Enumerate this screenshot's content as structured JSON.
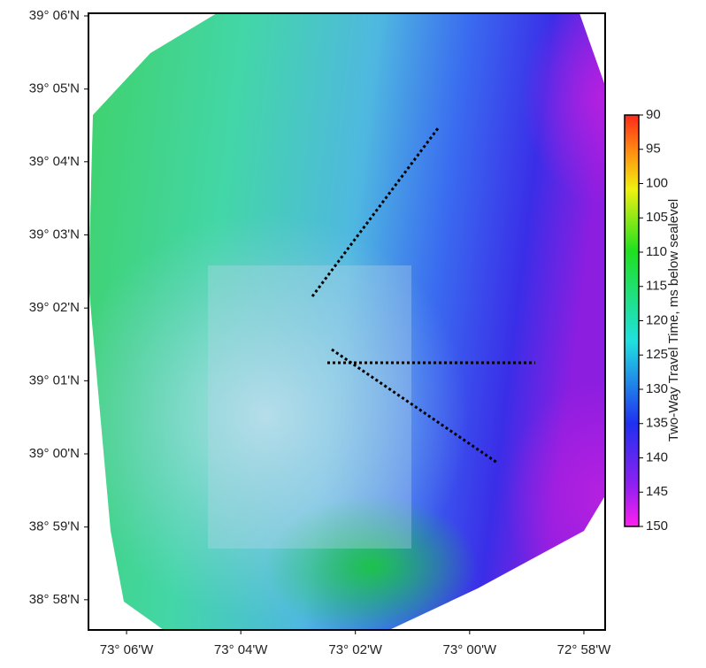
{
  "map": {
    "lat_lim": [
      38.9598,
      39.1006
    ],
    "lon_lim": [
      -73.1111,
      -72.9605
    ],
    "lat_ticks": [
      {
        "value": 39.1,
        "label": "39° 06'N"
      },
      {
        "value": 39.0833,
        "label": "39° 05'N"
      },
      {
        "value": 39.0667,
        "label": "39° 04'N"
      },
      {
        "value": 39.05,
        "label": "39° 03'N"
      },
      {
        "value": 39.0333,
        "label": "39° 02'N"
      },
      {
        "value": 39.0167,
        "label": "39° 01'N"
      },
      {
        "value": 39.0,
        "label": "39° 00'N"
      },
      {
        "value": 38.9833,
        "label": "38° 59'N"
      },
      {
        "value": 38.9667,
        "label": "38° 58'N"
      }
    ],
    "lon_ticks": [
      {
        "value": -73.1,
        "label": "73° 06'W"
      },
      {
        "value": -73.0667,
        "label": "73° 04'W"
      },
      {
        "value": -73.0333,
        "label": "73° 02'W"
      },
      {
        "value": -73.0,
        "label": "73° 00'W"
      },
      {
        "value": -72.9667,
        "label": "72° 58'W"
      }
    ],
    "colorbar": {
      "label": "Two-Way Travel Time, ms below sealevel",
      "lim": [
        90,
        150
      ],
      "ticks": [
        90,
        95,
        100,
        105,
        110,
        115,
        120,
        125,
        130,
        135,
        140,
        145,
        150
      ]
    }
  }
}
